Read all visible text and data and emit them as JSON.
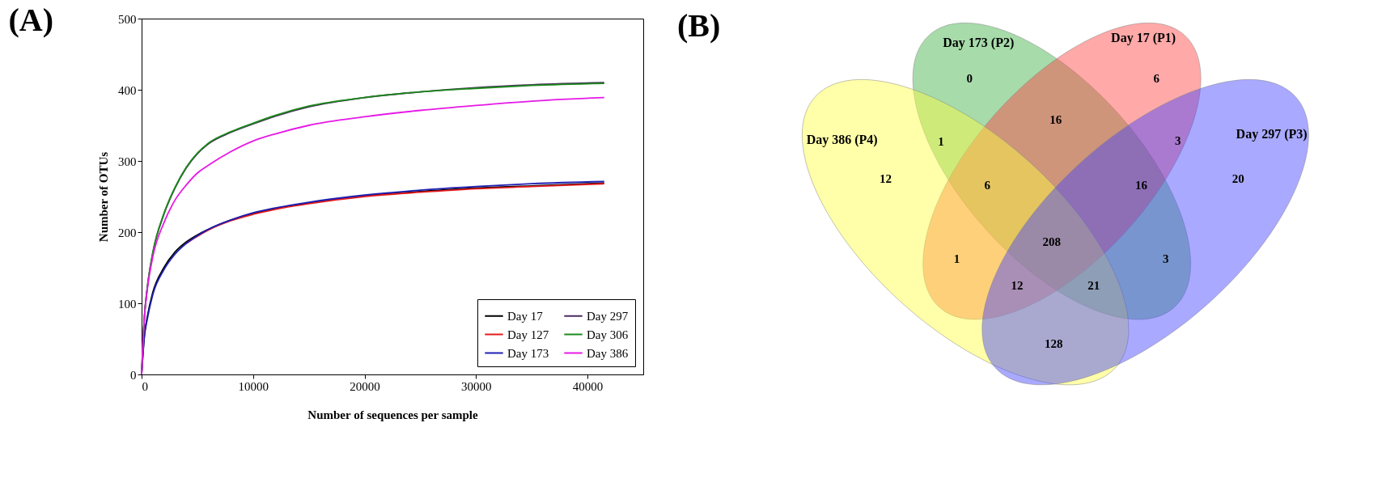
{
  "chart_data": [
    {
      "type": "line",
      "title": "(A)",
      "xlabel": "Number of sequences per sample",
      "ylabel": "Number of OTUs",
      "x": [
        0,
        250,
        500,
        1000,
        2000,
        3000,
        4000,
        5000,
        6000,
        8000,
        10000,
        12000,
        15000,
        20000,
        25000,
        30000,
        35000,
        41500
      ],
      "series": [
        {
          "name": "Day 17",
          "color": "#000000",
          "values": [
            0,
            55,
            80,
            115,
            150,
            172,
            186,
            196,
            204,
            217,
            226,
            233,
            241,
            251,
            257,
            262,
            265,
            269
          ]
        },
        {
          "name": "Day 127",
          "color": "#e41a1c",
          "values": [
            null,
            null,
            null,
            null,
            null,
            null,
            184,
            194,
            203,
            216,
            225,
            232,
            240,
            250,
            256,
            261,
            264,
            268
          ]
        },
        {
          "name": "Day 173",
          "color": "#1f1fb4",
          "values": [
            0,
            53,
            77,
            112,
            147,
            169,
            184,
            195,
            204,
            217,
            227,
            234,
            242,
            252,
            259,
            264,
            268,
            271
          ]
        },
        {
          "name": "Day 297",
          "color": "#4b2a5e",
          "values": [
            0,
            80,
            120,
            170,
            225,
            262,
            290,
            310,
            324,
            340,
            352,
            363,
            376,
            389,
            397,
            403,
            407,
            410
          ]
        },
        {
          "name": "Day 306",
          "color": "#1a8a1a",
          "values": [
            0,
            81,
            121,
            171,
            226,
            263,
            291,
            311,
            325,
            341,
            353,
            364,
            377,
            389,
            397,
            402,
            406,
            409
          ]
        },
        {
          "name": "Day 386",
          "color": "#e619e6",
          "values": [
            0,
            80,
            118,
            165,
            213,
            245,
            266,
            283,
            294,
            313,
            328,
            338,
            350,
            362,
            371,
            378,
            384,
            389
          ]
        }
      ],
      "xlim": [
        0,
        45000
      ],
      "xticks": [
        0,
        10000,
        20000,
        30000,
        40000
      ],
      "ylim": [
        0,
        500
      ],
      "yticks": [
        0,
        100,
        200,
        300,
        400,
        500
      ],
      "grid": false,
      "legend": "bottom right"
    },
    {
      "type": "other",
      "title": "(B)",
      "categories": [
        "Day 173 (P2)",
        "Day 17 (P1)",
        "Day 386 (P4)",
        "Day 297 (P3)"
      ],
      "colors": [
        "#3cb043",
        "#ff4040",
        "#ffff40",
        "#4040ff"
      ],
      "annotations": [
        "0",
        "6",
        "16",
        "1",
        "3",
        "20",
        "12",
        "6",
        "16",
        "208",
        "1",
        "3",
        "12",
        "21",
        "128"
      ]
    }
  ]
}
